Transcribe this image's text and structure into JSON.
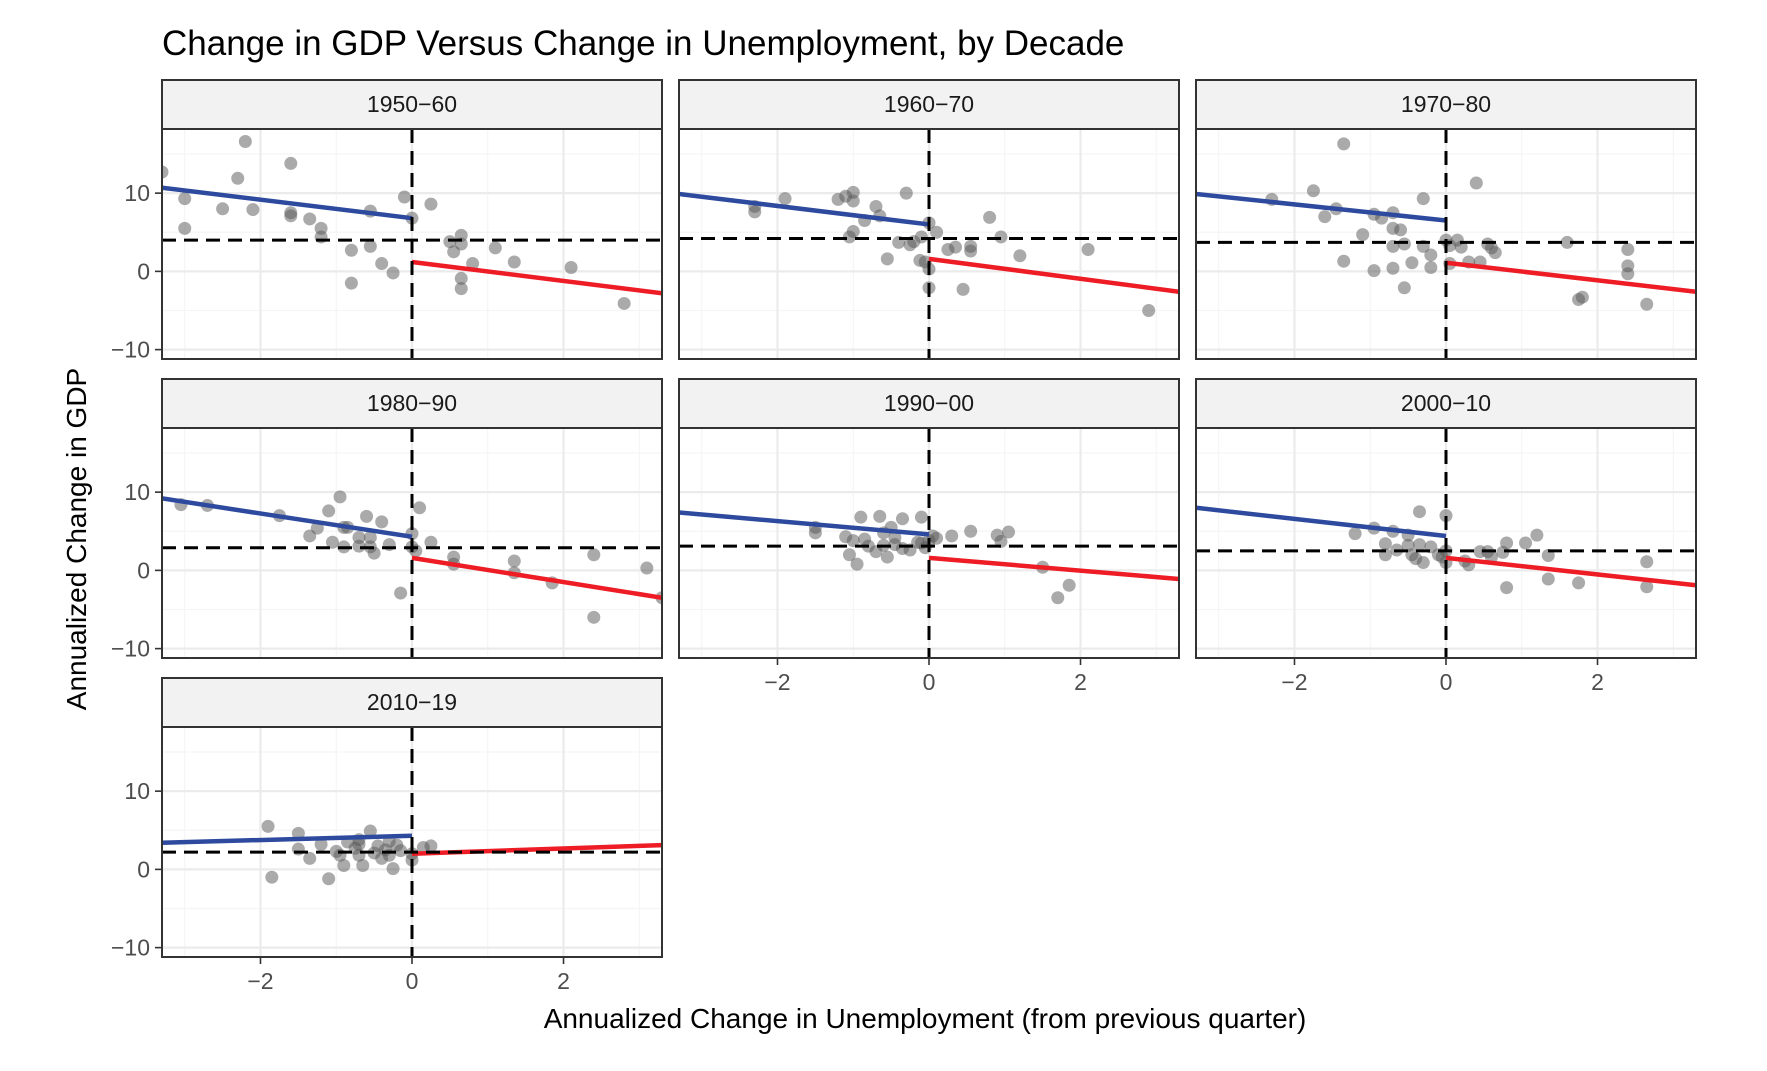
{
  "title": "Change in GDP Versus Change in Unemployment, by Decade",
  "colors": {
    "negative_fit": "#2E4A9F",
    "positive_fit": "#EE1C25",
    "points": "#555555"
  },
  "chart_data": {
    "type": "scatter",
    "facet": "decade",
    "xlabel": "Annualized Change in Unemployment (from previous quarter)",
    "ylabel": "Annualized Change in GDP",
    "xlim": [
      -3.3,
      3.3
    ],
    "ylim": [
      -11.2,
      18.2
    ],
    "x_ticks": [
      -2,
      0,
      2
    ],
    "y_ticks": [
      -10,
      0,
      10
    ],
    "grid": true,
    "panels": [
      {
        "label": "1950−60",
        "mean_gdp": 4.0,
        "fit_negative": {
          "x": [
            -3.3,
            0
          ],
          "y": [
            10.7,
            6.8
          ]
        },
        "fit_positive": {
          "x": [
            0,
            3.3
          ],
          "y": [
            1.2,
            -2.8
          ]
        },
        "points": [
          [
            -3.3,
            12.7
          ],
          [
            -3.0,
            9.3
          ],
          [
            -3.0,
            5.5
          ],
          [
            -2.5,
            8.0
          ],
          [
            -2.3,
            11.9
          ],
          [
            -2.2,
            16.6
          ],
          [
            -2.1,
            7.9
          ],
          [
            -1.6,
            13.8
          ],
          [
            -1.6,
            7.5
          ],
          [
            -1.6,
            7.1
          ],
          [
            -1.35,
            6.7
          ],
          [
            -1.2,
            5.5
          ],
          [
            -1.2,
            4.4
          ],
          [
            -0.8,
            2.7
          ],
          [
            -0.8,
            -1.5
          ],
          [
            -0.55,
            7.7
          ],
          [
            -0.55,
            3.2
          ],
          [
            -0.4,
            1.0
          ],
          [
            -0.25,
            -0.2
          ],
          [
            -0.1,
            9.5
          ],
          [
            0.0,
            6.8
          ],
          [
            0.25,
            8.6
          ],
          [
            0.5,
            3.8
          ],
          [
            0.55,
            2.5
          ],
          [
            0.65,
            4.6
          ],
          [
            0.65,
            3.5
          ],
          [
            0.65,
            -0.9
          ],
          [
            0.65,
            -2.2
          ],
          [
            0.8,
            1.0
          ],
          [
            1.1,
            3.0
          ],
          [
            1.35,
            1.2
          ],
          [
            2.1,
            0.5
          ],
          [
            2.8,
            -4.1
          ]
        ]
      },
      {
        "label": "1960−70",
        "mean_gdp": 4.2,
        "fit_negative": {
          "x": [
            -3.3,
            0
          ],
          "y": [
            9.9,
            6.0
          ]
        },
        "fit_positive": {
          "x": [
            0,
            3.3
          ],
          "y": [
            1.6,
            -2.6
          ]
        },
        "points": [
          [
            -2.3,
            8.3
          ],
          [
            -2.3,
            7.6
          ],
          [
            -1.9,
            9.3
          ],
          [
            -1.2,
            9.2
          ],
          [
            -1.1,
            9.6
          ],
          [
            -1.0,
            10.1
          ],
          [
            -1.0,
            9.0
          ],
          [
            -1.0,
            5.1
          ],
          [
            -1.05,
            4.4
          ],
          [
            -0.85,
            6.5
          ],
          [
            -0.7,
            8.3
          ],
          [
            -0.65,
            7.1
          ],
          [
            -0.55,
            1.6
          ],
          [
            -0.4,
            3.7
          ],
          [
            -0.3,
            10.0
          ],
          [
            -0.25,
            3.4
          ],
          [
            -0.2,
            3.8
          ],
          [
            -0.1,
            4.4
          ],
          [
            -0.12,
            1.4
          ],
          [
            0.0,
            6.2
          ],
          [
            -0.05,
            1.2
          ],
          [
            0.0,
            -2.1
          ],
          [
            0.0,
            0.3
          ],
          [
            0.1,
            5.0
          ],
          [
            0.25,
            2.8
          ],
          [
            0.35,
            3.1
          ],
          [
            0.45,
            -2.3
          ],
          [
            0.55,
            3.2
          ],
          [
            0.55,
            2.6
          ],
          [
            0.8,
            6.9
          ],
          [
            0.95,
            4.4
          ],
          [
            1.2,
            2.0
          ],
          [
            2.1,
            2.8
          ],
          [
            2.9,
            -5.0
          ]
        ]
      },
      {
        "label": "1970−80",
        "mean_gdp": 3.7,
        "fit_negative": {
          "x": [
            -3.3,
            0
          ],
          "y": [
            9.9,
            6.5
          ]
        },
        "fit_positive": {
          "x": [
            0,
            3.3
          ],
          "y": [
            1.1,
            -2.6
          ]
        },
        "points": [
          [
            -2.3,
            9.2
          ],
          [
            -1.75,
            10.3
          ],
          [
            -1.6,
            7.0
          ],
          [
            -1.45,
            8.0
          ],
          [
            -1.35,
            16.3
          ],
          [
            -1.35,
            1.3
          ],
          [
            -1.1,
            4.7
          ],
          [
            -0.95,
            7.3
          ],
          [
            -0.95,
            0.1
          ],
          [
            -0.85,
            6.8
          ],
          [
            -0.7,
            7.5
          ],
          [
            -0.7,
            5.5
          ],
          [
            -0.7,
            3.2
          ],
          [
            -0.7,
            0.4
          ],
          [
            -0.6,
            5.3
          ],
          [
            -0.55,
            3.5
          ],
          [
            -0.55,
            -2.1
          ],
          [
            -0.45,
            1.1
          ],
          [
            -0.3,
            9.3
          ],
          [
            -0.3,
            3.2
          ],
          [
            -0.2,
            2.1
          ],
          [
            -0.2,
            0.5
          ],
          [
            0.0,
            4.0
          ],
          [
            0.05,
            3.3
          ],
          [
            0.05,
            1.0
          ],
          [
            0.15,
            4.0
          ],
          [
            0.2,
            3.1
          ],
          [
            0.3,
            1.2
          ],
          [
            0.4,
            11.3
          ],
          [
            0.45,
            1.2
          ],
          [
            0.55,
            3.5
          ],
          [
            0.6,
            3.0
          ],
          [
            0.65,
            2.4
          ],
          [
            1.6,
            3.7
          ],
          [
            1.8,
            -3.3
          ],
          [
            1.75,
            -3.6
          ],
          [
            2.4,
            2.8
          ],
          [
            2.4,
            0.7
          ],
          [
            2.4,
            -0.3
          ],
          [
            2.65,
            -4.2
          ]
        ]
      },
      {
        "label": "1980−90",
        "mean_gdp": 2.9,
        "fit_negative": {
          "x": [
            -3.3,
            0
          ],
          "y": [
            9.2,
            4.3
          ]
        },
        "fit_positive": {
          "x": [
            0,
            3.3
          ],
          "y": [
            1.6,
            -3.5
          ]
        },
        "points": [
          [
            -3.05,
            8.4
          ],
          [
            -2.7,
            8.3
          ],
          [
            -1.75,
            7.0
          ],
          [
            -1.35,
            4.4
          ],
          [
            -1.25,
            5.4
          ],
          [
            -1.1,
            7.6
          ],
          [
            -1.05,
            3.6
          ],
          [
            -0.95,
            9.4
          ],
          [
            -0.9,
            5.5
          ],
          [
            -0.9,
            3.0
          ],
          [
            -0.85,
            5.5
          ],
          [
            -0.7,
            4.2
          ],
          [
            -0.7,
            3.1
          ],
          [
            -0.6,
            6.9
          ],
          [
            -0.55,
            4.2
          ],
          [
            -0.55,
            3.0
          ],
          [
            -0.5,
            2.2
          ],
          [
            -0.4,
            6.2
          ],
          [
            -0.3,
            3.3
          ],
          [
            -0.15,
            -2.9
          ],
          [
            0.0,
            4.7
          ],
          [
            0.0,
            3.0
          ],
          [
            0.05,
            2.5
          ],
          [
            0.1,
            8.0
          ],
          [
            0.25,
            3.6
          ],
          [
            0.55,
            1.7
          ],
          [
            0.55,
            0.8
          ],
          [
            1.35,
            1.2
          ],
          [
            1.35,
            -0.3
          ],
          [
            1.85,
            -1.6
          ],
          [
            2.4,
            2.0
          ],
          [
            2.4,
            -6.0
          ],
          [
            3.1,
            0.3
          ],
          [
            3.3,
            -3.5
          ]
        ]
      },
      {
        "label": "1990−00",
        "mean_gdp": 3.1,
        "fit_negative": {
          "x": [
            -3.3,
            0
          ],
          "y": [
            7.4,
            4.6
          ]
        },
        "fit_positive": {
          "x": [
            0,
            3.3
          ],
          "y": [
            1.6,
            -1.1
          ]
        },
        "points": [
          [
            -1.5,
            5.5
          ],
          [
            -1.5,
            4.8
          ],
          [
            -1.1,
            4.3
          ],
          [
            -1.05,
            2.0
          ],
          [
            -1.0,
            3.8
          ],
          [
            -0.95,
            0.8
          ],
          [
            -0.9,
            6.8
          ],
          [
            -0.85,
            4.0
          ],
          [
            -0.8,
            3.1
          ],
          [
            -0.7,
            2.4
          ],
          [
            -0.65,
            6.9
          ],
          [
            -0.6,
            4.8
          ],
          [
            -0.6,
            3.2
          ],
          [
            -0.55,
            1.7
          ],
          [
            -0.5,
            5.5
          ],
          [
            -0.45,
            4.2
          ],
          [
            -0.45,
            3.3
          ],
          [
            -0.35,
            6.6
          ],
          [
            -0.35,
            2.8
          ],
          [
            -0.25,
            2.6
          ],
          [
            -0.15,
            3.6
          ],
          [
            -0.1,
            6.8
          ],
          [
            -0.1,
            3.5
          ],
          [
            -0.05,
            2.9
          ],
          [
            0.0,
            3.8
          ],
          [
            0.05,
            4.4
          ],
          [
            0.1,
            4.1
          ],
          [
            0.3,
            4.4
          ],
          [
            0.55,
            5.0
          ],
          [
            0.9,
            4.5
          ],
          [
            0.95,
            3.7
          ],
          [
            1.05,
            4.9
          ],
          [
            1.5,
            0.4
          ],
          [
            1.7,
            -3.5
          ],
          [
            1.85,
            -1.9
          ]
        ]
      },
      {
        "label": "2000−10",
        "mean_gdp": 2.5,
        "fit_negative": {
          "x": [
            -3.3,
            0
          ],
          "y": [
            8.0,
            4.4
          ]
        },
        "fit_positive": {
          "x": [
            0,
            3.3
          ],
          "y": [
            1.6,
            -1.9
          ]
        },
        "points": [
          [
            -1.2,
            4.7
          ],
          [
            -0.95,
            5.4
          ],
          [
            -0.8,
            3.4
          ],
          [
            -0.8,
            2.0
          ],
          [
            -0.7,
            5.0
          ],
          [
            -0.65,
            2.6
          ],
          [
            -0.5,
            4.5
          ],
          [
            -0.5,
            3.2
          ],
          [
            -0.45,
            2.0
          ],
          [
            -0.4,
            1.5
          ],
          [
            -0.35,
            7.5
          ],
          [
            -0.35,
            3.3
          ],
          [
            -0.3,
            1.0
          ],
          [
            -0.2,
            3.0
          ],
          [
            -0.1,
            2.0
          ],
          [
            -0.05,
            1.7
          ],
          [
            0.0,
            7.0
          ],
          [
            0.0,
            2.5
          ],
          [
            0.0,
            1.0
          ],
          [
            0.25,
            1.2
          ],
          [
            0.3,
            0.7
          ],
          [
            0.45,
            2.4
          ],
          [
            0.55,
            2.4
          ],
          [
            0.6,
            1.7
          ],
          [
            0.75,
            2.3
          ],
          [
            0.8,
            -2.2
          ],
          [
            0.8,
            3.5
          ],
          [
            1.05,
            3.5
          ],
          [
            1.2,
            4.5
          ],
          [
            1.35,
            1.9
          ],
          [
            1.35,
            -1.1
          ],
          [
            1.75,
            -1.6
          ],
          [
            2.65,
            1.1
          ],
          [
            2.65,
            -2.1
          ]
        ]
      },
      {
        "label": "2010−19",
        "mean_gdp": 2.2,
        "fit_negative": {
          "x": [
            -3.3,
            0
          ],
          "y": [
            3.4,
            4.3
          ]
        },
        "fit_positive": {
          "x": [
            0,
            3.3
          ],
          "y": [
            2.0,
            3.1
          ]
        },
        "points": [
          [
            -1.9,
            5.5
          ],
          [
            -1.85,
            -1.0
          ],
          [
            -1.5,
            4.6
          ],
          [
            -1.5,
            2.6
          ],
          [
            -1.35,
            1.4
          ],
          [
            -1.2,
            3.2
          ],
          [
            -1.1,
            -1.2
          ],
          [
            -1.0,
            2.3
          ],
          [
            -0.95,
            1.8
          ],
          [
            -0.9,
            0.5
          ],
          [
            -0.85,
            3.5
          ],
          [
            -0.75,
            2.7
          ],
          [
            -0.7,
            3.8
          ],
          [
            -0.7,
            3.2
          ],
          [
            -0.7,
            1.8
          ],
          [
            -0.65,
            0.5
          ],
          [
            -0.55,
            4.9
          ],
          [
            -0.5,
            2.1
          ],
          [
            -0.45,
            3.0
          ],
          [
            -0.4,
            1.4
          ],
          [
            -0.35,
            2.5
          ],
          [
            -0.3,
            3.6
          ],
          [
            -0.3,
            1.8
          ],
          [
            -0.25,
            0.1
          ],
          [
            -0.2,
            3.1
          ],
          [
            -0.15,
            2.4
          ],
          [
            0.0,
            2.0
          ],
          [
            0.0,
            1.2
          ],
          [
            0.15,
            2.8
          ],
          [
            0.25,
            3.0
          ]
        ]
      }
    ]
  }
}
